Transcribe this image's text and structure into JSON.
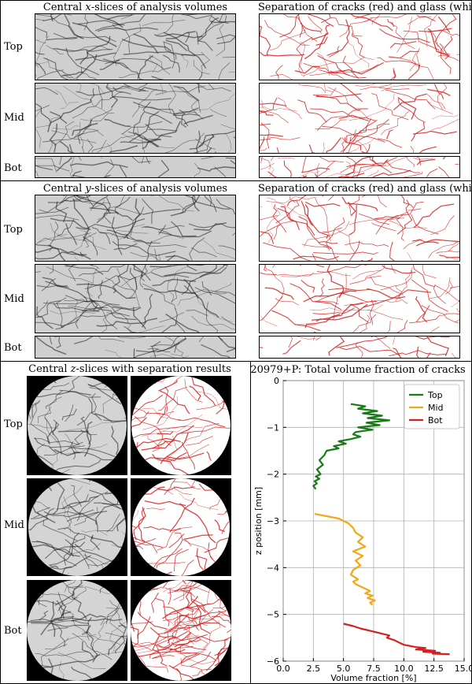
{
  "figure": {
    "panel_x": {
      "left_title_pre": "Central ",
      "left_title_var": "x",
      "left_title_post": "-slices of analysis volumes",
      "right_title": "Separation of cracks (red) and glass (white)",
      "rows": [
        "Top",
        "Mid",
        "Bot"
      ]
    },
    "panel_y": {
      "left_title_pre": "Central ",
      "left_title_var": "y",
      "left_title_post": "-slices of analysis volumes",
      "right_title": "Separation of cracks (red) and glass (white)",
      "rows": [
        "Top",
        "Mid",
        "Bot"
      ]
    },
    "panel_z": {
      "title_pre": "Central ",
      "title_var": "z",
      "title_post": "-slices with separation results",
      "rows": [
        "Top",
        "Mid",
        "Bot"
      ]
    },
    "colors": {
      "crack_red": "#d42020",
      "glass_gray": "#cfcfcf",
      "line_dark": "#1a1a1a"
    }
  },
  "chart_data": {
    "type": "line",
    "title": "20979+P: Total volume fraction of cracks",
    "xlabel": "Volume fraction [%]",
    "ylabel": "z position [mm]",
    "xlim": [
      0,
      15
    ],
    "ylim": [
      -6,
      0
    ],
    "xticks": [
      "0.0",
      "2.5",
      "5.0",
      "7.5",
      "10.0",
      "12.5",
      "15.0"
    ],
    "yticks": [
      "0",
      "−1",
      "−2",
      "−3",
      "−4",
      "−5",
      "−6"
    ],
    "grid": true,
    "legend_position": "top-right",
    "series": [
      {
        "name": "Top",
        "color": "#1a7a1a",
        "x": [
          5.6,
          6.8,
          6.2,
          7.8,
          6.6,
          8.2,
          7.0,
          8.8,
          6.9,
          8.0,
          6.2,
          7.4,
          6.0,
          5.8,
          6.4,
          5.6,
          4.6,
          5.2,
          4.2,
          4.6,
          3.6,
          3.4,
          3.0,
          3.3,
          2.8,
          3.1,
          2.7,
          3.0,
          2.6,
          2.8,
          2.5,
          2.7
        ],
        "y": [
          -0.5,
          -0.55,
          -0.6,
          -0.65,
          -0.7,
          -0.75,
          -0.8,
          -0.85,
          -0.9,
          -0.95,
          -1.0,
          -1.05,
          -1.1,
          -1.15,
          -1.2,
          -1.25,
          -1.3,
          -1.35,
          -1.4,
          -1.45,
          -1.5,
          -1.6,
          -1.7,
          -1.8,
          -1.9,
          -2.0,
          -2.05,
          -2.1,
          -2.15,
          -2.2,
          -2.25,
          -2.32
        ]
      },
      {
        "name": "Mid",
        "color": "#f0a818",
        "x": [
          2.6,
          4.6,
          5.4,
          5.8,
          6.0,
          6.6,
          6.2,
          6.8,
          5.8,
          6.6,
          6.0,
          6.4,
          5.8,
          5.6,
          6.2,
          5.8,
          6.0,
          6.4,
          6.8,
          7.2,
          6.8,
          7.4,
          7.0,
          7.6,
          7.2,
          7.4
        ],
        "y": [
          -2.85,
          -2.95,
          -3.05,
          -3.15,
          -3.25,
          -3.35,
          -3.45,
          -3.55,
          -3.65,
          -3.75,
          -3.85,
          -3.95,
          -4.05,
          -4.15,
          -4.25,
          -4.3,
          -4.35,
          -4.4,
          -4.45,
          -4.5,
          -4.55,
          -4.6,
          -4.65,
          -4.7,
          -4.75,
          -4.8
        ]
      },
      {
        "name": "Bot",
        "color": "#d42020",
        "x": [
          5.0,
          5.8,
          6.4,
          7.2,
          8.0,
          8.8,
          8.6,
          9.2,
          9.6,
          10.0,
          11.0,
          11.8,
          11.0,
          12.6,
          11.6,
          13.0,
          12.4,
          13.8
        ],
        "y": [
          -5.2,
          -5.25,
          -5.3,
          -5.35,
          -5.4,
          -5.45,
          -5.5,
          -5.55,
          -5.6,
          -5.65,
          -5.7,
          -5.72,
          -5.75,
          -5.78,
          -5.8,
          -5.82,
          -5.84,
          -5.85
        ]
      }
    ]
  }
}
